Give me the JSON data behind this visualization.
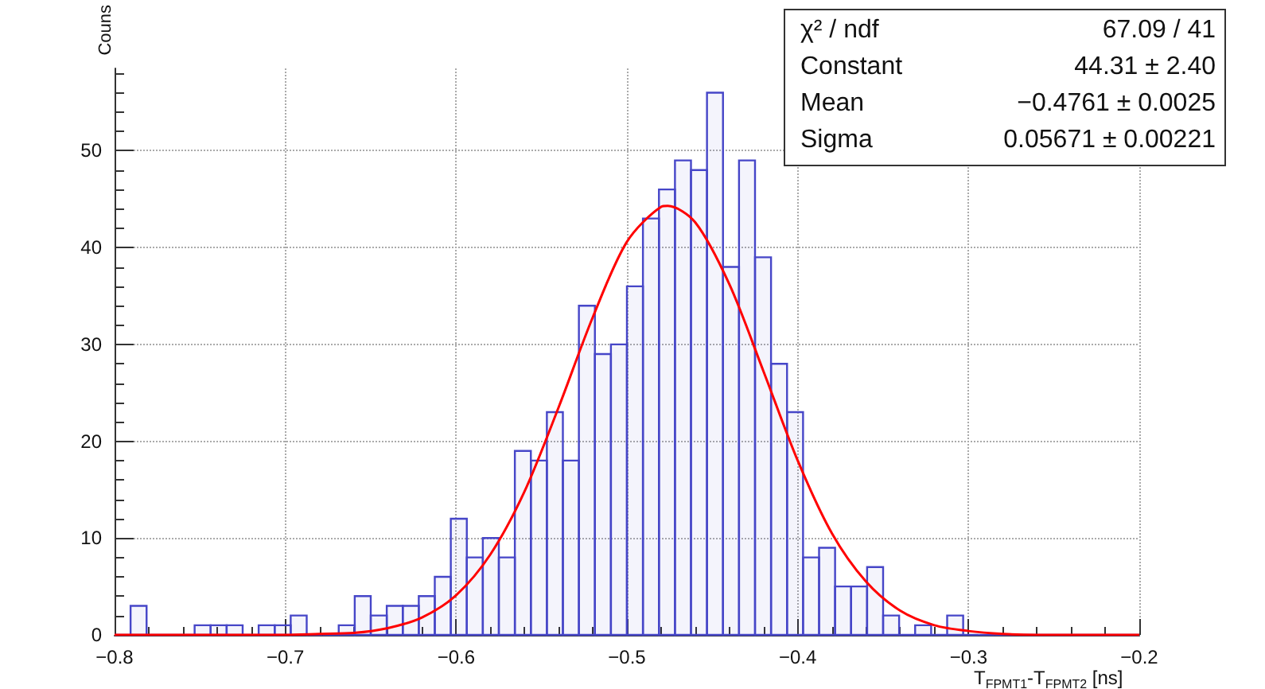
{
  "chart_data": {
    "type": "histogram",
    "xlabel": "T$_{FPMT1}$-T$_{FPMT2}$ [ns]",
    "ylabel": "Couns",
    "bins": [
      -0.8,
      -0.790625,
      -0.78125,
      -0.771875,
      -0.7625,
      -0.753125,
      -0.74375,
      -0.734375,
      -0.725,
      -0.715625,
      -0.70625,
      -0.696875,
      -0.6875,
      -0.678125,
      -0.66875,
      -0.659375,
      -0.65,
      -0.640625,
      -0.63125,
      -0.621875,
      -0.6125,
      -0.603125,
      -0.59375,
      -0.584375,
      -0.575,
      -0.565625,
      -0.55625,
      -0.546875,
      -0.5375,
      -0.528125,
      -0.51875,
      -0.509375,
      -0.5,
      -0.490625,
      -0.48125,
      -0.471875,
      -0.4625,
      -0.453125,
      -0.44375,
      -0.434375,
      -0.425,
      -0.415625,
      -0.40625,
      -0.396875,
      -0.3875,
      -0.378125,
      -0.36875,
      -0.359375,
      -0.35,
      -0.340625,
      -0.33125,
      -0.321875,
      -0.3125,
      -0.303125,
      -0.29375,
      -0.284375,
      -0.275,
      -0.265625,
      -0.25625,
      -0.246875,
      -0.2375,
      -0.228125,
      -0.21875,
      -0.209375,
      -0.2
    ],
    "series": [
      {
        "color": "#4646c8",
        "values": [
          0,
          3,
          0,
          0,
          0,
          1,
          1,
          1,
          0,
          1,
          1,
          2,
          0,
          0,
          1,
          4,
          2,
          3,
          3,
          4,
          6,
          12,
          8,
          10,
          8,
          19,
          18,
          23,
          18,
          34,
          29,
          30,
          36,
          43,
          46,
          49,
          48,
          56,
          38,
          49,
          39,
          28,
          23,
          8,
          9,
          5,
          5,
          7,
          2,
          0,
          1,
          0,
          2,
          0,
          0,
          0,
          0,
          0,
          0,
          0,
          0,
          0,
          0,
          0
        ]
      },
      {
        "type": "line",
        "color": "#ff0000",
        "marker": "none",
        "line_style": "solid",
        "x": [
          -0.8,
          -0.76,
          -0.72,
          -0.7,
          -0.68,
          -0.66,
          -0.64,
          -0.62,
          -0.6,
          -0.58,
          -0.56,
          -0.54,
          -0.52,
          -0.5,
          -0.48,
          -0.4761,
          -0.46,
          -0.44,
          -0.42,
          -0.4,
          -0.38,
          -0.36,
          -0.34,
          -0.32,
          -0.3,
          -0.28,
          -0.26,
          -0.24,
          -0.2
        ],
        "values": [
          0,
          0,
          0,
          0,
          0.1,
          0.2,
          0.7,
          1.8,
          4.1,
          8.3,
          14.8,
          23.5,
          32.8,
          40.6,
          44.2,
          44.3,
          42.6,
          36.2,
          27.2,
          18.0,
          10.5,
          5.5,
          2.5,
          1.0,
          0.4,
          0.1,
          0,
          0,
          0
        ]
      }
    ],
    "xlim": [
      -0.8,
      -0.2
    ],
    "xticks": [
      {
        "value": -0.8,
        "label": "−0.8"
      },
      {
        "value": -0.7,
        "label": "−0.7"
      },
      {
        "value": -0.6,
        "label": "−0.6"
      },
      {
        "value": -0.5,
        "label": "−0.5"
      },
      {
        "value": -0.4,
        "label": "−0.4"
      },
      {
        "value": -0.3,
        "label": "−0.3"
      },
      {
        "value": -0.2,
        "label": "−0.2"
      }
    ],
    "ylim": [
      0,
      58.5
    ],
    "yticks": [
      0,
      10,
      20,
      30,
      40,
      50
    ],
    "grid": true,
    "annotations": [
      "χ² / ndf",
      "67.09 / 41",
      "Constant",
      "44.31 ± 2.40",
      "Mean",
      "−0.4761 ± 0.0025",
      "Sigma",
      "0.05671 ± 0.00221"
    ]
  }
}
